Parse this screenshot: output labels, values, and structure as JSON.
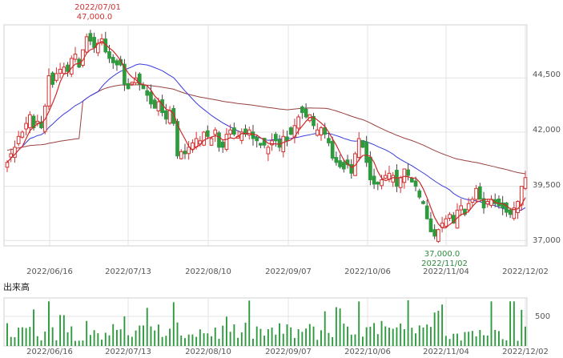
{
  "colors": {
    "up": "#d43030",
    "down": "#2e9a3e",
    "ma_short": "#cc2a2a",
    "ma_mid": "#3b3be0",
    "ma_long": "#9a4040",
    "grid": "#e3e3e3",
    "volume": "#2e9a3e",
    "high_label": "#cc3333",
    "low_label": "#2e8a3e"
  },
  "price_chart": {
    "y_ticks": [
      "44,500",
      "42,000",
      "39,500",
      "37,000"
    ],
    "x_ticks": [
      "2022/06/16",
      "2022/07/13",
      "2022/08/10",
      "2022/09/07",
      "2022/10/06",
      "2022/11/04",
      "2022/12/02"
    ],
    "high_date": "2022/07/01",
    "high_value": "47,000.0",
    "low_value": "37,000.0",
    "low_date": "2022/11/02"
  },
  "volume_chart": {
    "title": "出来高",
    "y_tick": "500",
    "x_ticks": [
      "2022/06/16",
      "2022/07/13",
      "2022/08/10",
      "2022/09/07",
      "2022/10/06",
      "2022/11/04",
      "2022/12/02"
    ]
  },
  "chart_data": {
    "type": "candlestick",
    "y_range": [
      36750,
      46950
    ],
    "y_ticks": [
      44500,
      42000,
      39500,
      37000
    ],
    "x_range": [
      "2022/06/02",
      "2022/12/02"
    ],
    "x_ticks": [
      "2022/06/16",
      "2022/07/13",
      "2022/08/10",
      "2022/09/07",
      "2022/10/06",
      "2022/11/04",
      "2022/12/02"
    ],
    "annotations": [
      {
        "label": "2022/07/01 47,000.0",
        "type": "high",
        "date": "2022/07/01",
        "value": 47000
      },
      {
        "label": "37,000.0 2022/11/02",
        "type": "low",
        "date": "2022/11/02",
        "value": 37000
      }
    ],
    "close": [
      40600,
      41000,
      41300,
      41800,
      42000,
      42400,
      42800,
      42200,
      42500,
      42200,
      43200,
      44600,
      44200,
      44700,
      44900,
      45000,
      44800,
      45400,
      45600,
      45000,
      45800,
      46400,
      46200,
      45900,
      46100,
      46300,
      45700,
      45400,
      45200,
      45100,
      45100,
      44200,
      44000,
      44300,
      44500,
      44200,
      44000,
      43700,
      43300,
      43100,
      43400,
      42900,
      42600,
      43000,
      42400,
      40900,
      41100,
      41000,
      41300,
      41500,
      41700,
      41600,
      42000,
      41800,
      41700,
      42100,
      41300,
      41300,
      41900,
      42100,
      41900,
      41800,
      42000,
      41900,
      42100,
      41700,
      41600,
      41400,
      41400,
      41300,
      41600,
      41600,
      41300,
      41800,
      41600,
      41900,
      42300,
      42700,
      42900,
      42700,
      42800,
      42300,
      42100,
      42200,
      41900,
      41500,
      40800,
      40600,
      40400,
      40300,
      40500,
      40100,
      41000,
      41700,
      41300,
      40600,
      39800,
      39600,
      39600,
      39800,
      40000,
      40100,
      40000,
      39500,
      39900,
      40300,
      40000,
      39700,
      39500,
      39000,
      38700,
      38000,
      37400,
      37200,
      37500,
      37800,
      38000,
      38200,
      37800,
      38400,
      38600,
      38200,
      38700,
      38900,
      39400,
      38900,
      38500,
      38800,
      38900,
      38700,
      38600,
      38500,
      38300,
      38200,
      38500,
      38800,
      39500,
      39900
    ]
  }
}
